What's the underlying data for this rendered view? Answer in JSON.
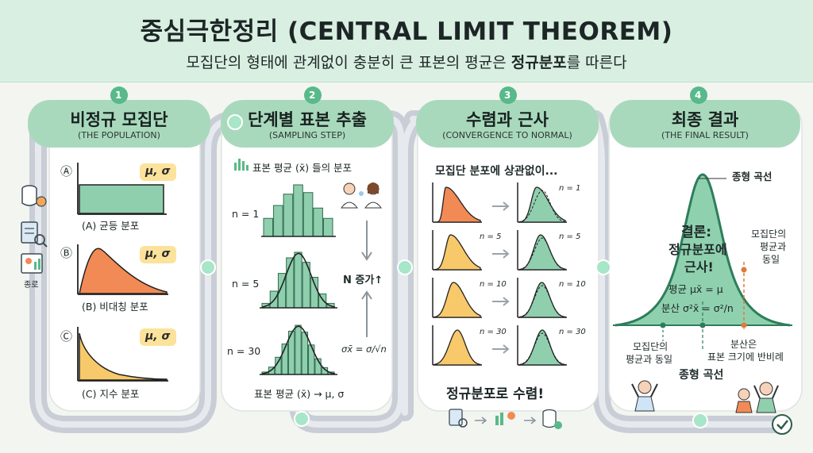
{
  "header": {
    "title": "중심극한정리 (CENTRAL LIMIT THEOREM)",
    "subtitle_plain": "모집단의 형태에 관계없이 충분히 큰 표본의 평균은 ",
    "subtitle_bold": "정규분포",
    "subtitle_end": "를 따른다"
  },
  "steps": [
    {
      "num": "1",
      "title": "비정규 모집단",
      "subtitle": "(THE POPULATION)"
    },
    {
      "num": "2",
      "title": "단계별 표본 추출",
      "subtitle": "(SAMPLING STEP)"
    },
    {
      "num": "3",
      "title": "수렴과 근사",
      "subtitle": "(CONVERGENCE TO NORMAL)"
    },
    {
      "num": "4",
      "title": "최종 결과",
      "subtitle": "(THE FINAL RESULT)"
    }
  ],
  "population": {
    "params": "μ, σ",
    "side_label": "종로",
    "dists": [
      {
        "mark": "Ⓐ",
        "label": "(A) 균등 분포",
        "color": "#8fcfae"
      },
      {
        "mark": "Ⓑ",
        "label": "(B) 비대칭 분포",
        "color": "#f28a55"
      },
      {
        "mark": "Ⓒ",
        "label": "(C) 지수 분포",
        "color": "#f7c96a"
      }
    ]
  },
  "sampling": {
    "hist_title": "표본 평균 (x̄) 들의 분포",
    "n_labels": [
      "n = 1",
      "n = 5",
      "n = 30"
    ],
    "n_increase": "N 증가↑",
    "se_formula": "σx̄ = σ/√n",
    "bottom": "표본 평균 (x̄) → μ, σ"
  },
  "convergence": {
    "intro": "모집단 분포에 상관없이...",
    "n_labels": [
      "n = 1",
      "n = 5",
      "n = 10",
      "n = 30"
    ],
    "conclusion": "정규분포로 수렴!"
  },
  "result": {
    "bell_label": "종형 곡선",
    "conclusion_head": "결론:",
    "conclusion_l2": "정규분포에",
    "conclusion_l3": "근사!",
    "mean_text": "평균 μx̄ = μ",
    "var_text": "분산 σ²x̄ = σ²/n",
    "right_note_l1": "모집단의",
    "right_note_l2": "평균과",
    "right_note_l3": "동일",
    "left_note_l1": "모집단의",
    "left_note_l2": "평균과 동일",
    "var_note_l1": "분산은",
    "var_note_l2": "표본 크기에 반비례",
    "bottom_label": "종형 곡선"
  }
}
